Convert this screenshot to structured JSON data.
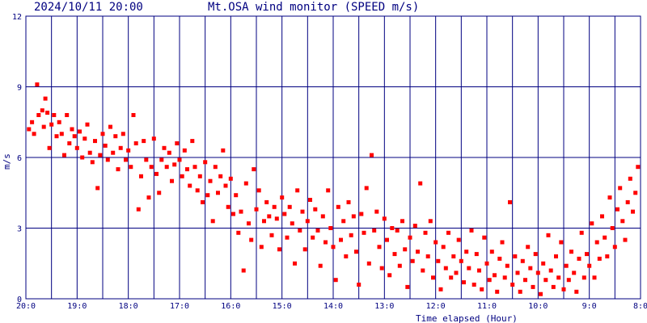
{
  "header": {
    "timestamp": "2024/10/11 20:00",
    "title": "Mt.OSA wind monitor (SPEED m/s)"
  },
  "colors": {
    "background": "#ffffff",
    "grid": "#000080",
    "text": "#000080",
    "points": "#ff0000"
  },
  "chart_data": {
    "type": "scatter",
    "title": "Mt.OSA wind monitor (SPEED m/s)",
    "xlabel": "Time elapsed (Hour)",
    "ylabel": "m/s",
    "x_tick_labels": [
      "20:0",
      "19:0",
      "18:0",
      "17:0",
      "16:0",
      "15:0",
      "14:0",
      "13:0",
      "12:0",
      "11:0",
      "10:0",
      "9:0",
      "8:0"
    ],
    "y_tick_labels": [
      "0",
      "3",
      "6",
      "9",
      "12"
    ],
    "y_ticks": [
      0,
      3,
      6,
      9,
      12
    ],
    "xlim_hours_elapsed": [
      0,
      12
    ],
    "ylim": [
      0,
      12
    ],
    "grid": true,
    "series": [
      {
        "points": [
          [
            0.06,
            7.2
          ],
          [
            0.12,
            7.5
          ],
          [
            0.16,
            7.0
          ],
          [
            0.22,
            9.1
          ],
          [
            0.25,
            7.8
          ],
          [
            0.32,
            8.0
          ],
          [
            0.35,
            7.3
          ],
          [
            0.38,
            8.5
          ],
          [
            0.42,
            7.9
          ],
          [
            0.46,
            6.4
          ],
          [
            0.5,
            7.4
          ],
          [
            0.55,
            7.8
          ],
          [
            0.6,
            6.9
          ],
          [
            0.65,
            7.5
          ],
          [
            0.7,
            7.0
          ],
          [
            0.75,
            6.1
          ],
          [
            0.8,
            7.8
          ],
          [
            0.85,
            6.6
          ],
          [
            0.9,
            7.2
          ],
          [
            0.95,
            6.9
          ],
          [
            1.0,
            6.4
          ],
          [
            1.05,
            7.1
          ],
          [
            1.1,
            6.0
          ],
          [
            1.15,
            6.8
          ],
          [
            1.2,
            7.4
          ],
          [
            1.25,
            6.2
          ],
          [
            1.3,
            5.8
          ],
          [
            1.35,
            6.7
          ],
          [
            1.4,
            4.7
          ],
          [
            1.45,
            6.1
          ],
          [
            1.5,
            7.0
          ],
          [
            1.55,
            6.5
          ],
          [
            1.6,
            5.9
          ],
          [
            1.65,
            7.3
          ],
          [
            1.7,
            6.2
          ],
          [
            1.75,
            6.9
          ],
          [
            1.8,
            5.5
          ],
          [
            1.85,
            6.4
          ],
          [
            1.9,
            7.0
          ],
          [
            1.95,
            5.9
          ],
          [
            2.0,
            6.3
          ],
          [
            2.05,
            5.6
          ],
          [
            2.1,
            7.8
          ],
          [
            2.15,
            6.6
          ],
          [
            2.2,
            3.8
          ],
          [
            2.25,
            5.2
          ],
          [
            2.3,
            6.7
          ],
          [
            2.35,
            5.9
          ],
          [
            2.4,
            4.3
          ],
          [
            2.45,
            5.6
          ],
          [
            2.5,
            6.8
          ],
          [
            2.55,
            5.3
          ],
          [
            2.6,
            4.5
          ],
          [
            2.65,
            5.9
          ],
          [
            2.7,
            6.4
          ],
          [
            2.75,
            5.6
          ],
          [
            2.8,
            6.2
          ],
          [
            2.85,
            5.0
          ],
          [
            2.9,
            5.7
          ],
          [
            2.95,
            6.6
          ],
          [
            3.0,
            5.9
          ],
          [
            3.05,
            5.2
          ],
          [
            3.1,
            6.3
          ],
          [
            3.15,
            5.5
          ],
          [
            3.2,
            4.8
          ],
          [
            3.25,
            6.7
          ],
          [
            3.3,
            5.6
          ],
          [
            3.35,
            4.6
          ],
          [
            3.4,
            5.2
          ],
          [
            3.45,
            4.1
          ],
          [
            3.5,
            5.8
          ],
          [
            3.55,
            4.4
          ],
          [
            3.6,
            5.0
          ],
          [
            3.65,
            3.3
          ],
          [
            3.7,
            5.6
          ],
          [
            3.75,
            4.5
          ],
          [
            3.8,
            5.2
          ],
          [
            3.85,
            6.3
          ],
          [
            3.9,
            4.8
          ],
          [
            3.95,
            3.9
          ],
          [
            4.0,
            5.1
          ],
          [
            4.05,
            3.6
          ],
          [
            4.1,
            4.4
          ],
          [
            4.15,
            2.8
          ],
          [
            4.2,
            3.7
          ],
          [
            4.25,
            1.2
          ],
          [
            4.3,
            4.9
          ],
          [
            4.35,
            3.2
          ],
          [
            4.4,
            2.5
          ],
          [
            4.45,
            5.5
          ],
          [
            4.5,
            3.8
          ],
          [
            4.55,
            4.6
          ],
          [
            4.6,
            2.2
          ],
          [
            4.65,
            3.3
          ],
          [
            4.7,
            4.1
          ],
          [
            4.75,
            3.5
          ],
          [
            4.8,
            2.7
          ],
          [
            4.85,
            3.9
          ],
          [
            4.9,
            3.4
          ],
          [
            4.95,
            2.1
          ],
          [
            5.0,
            4.3
          ],
          [
            5.05,
            3.6
          ],
          [
            5.1,
            2.6
          ],
          [
            5.15,
            3.9
          ],
          [
            5.2,
            3.2
          ],
          [
            5.25,
            1.5
          ],
          [
            5.3,
            4.6
          ],
          [
            5.35,
            2.9
          ],
          [
            5.4,
            3.7
          ],
          [
            5.45,
            2.1
          ],
          [
            5.5,
            3.3
          ],
          [
            5.55,
            4.2
          ],
          [
            5.6,
            2.6
          ],
          [
            5.65,
            3.8
          ],
          [
            5.7,
            2.9
          ],
          [
            5.75,
            1.4
          ],
          [
            5.8,
            3.5
          ],
          [
            5.85,
            2.4
          ],
          [
            5.9,
            4.6
          ],
          [
            5.95,
            3.0
          ],
          [
            6.0,
            2.2
          ],
          [
            6.05,
            0.8
          ],
          [
            6.1,
            3.9
          ],
          [
            6.15,
            2.5
          ],
          [
            6.2,
            3.3
          ],
          [
            6.25,
            1.8
          ],
          [
            6.3,
            4.1
          ],
          [
            6.35,
            2.7
          ],
          [
            6.4,
            3.5
          ],
          [
            6.45,
            2.0
          ],
          [
            6.5,
            0.6
          ],
          [
            6.55,
            3.6
          ],
          [
            6.6,
            2.8
          ],
          [
            6.65,
            4.7
          ],
          [
            6.7,
            1.5
          ],
          [
            6.75,
            6.1
          ],
          [
            6.8,
            2.9
          ],
          [
            6.85,
            3.7
          ],
          [
            6.9,
            2.2
          ],
          [
            6.95,
            1.3
          ],
          [
            7.0,
            3.4
          ],
          [
            7.05,
            2.5
          ],
          [
            7.1,
            1.0
          ],
          [
            7.15,
            3.0
          ],
          [
            7.2,
            1.9
          ],
          [
            7.25,
            2.9
          ],
          [
            7.3,
            1.4
          ],
          [
            7.35,
            3.3
          ],
          [
            7.4,
            2.1
          ],
          [
            7.45,
            0.5
          ],
          [
            7.5,
            2.6
          ],
          [
            7.55,
            1.6
          ],
          [
            7.6,
            3.1
          ],
          [
            7.65,
            2.0
          ],
          [
            7.7,
            4.9
          ],
          [
            7.75,
            1.2
          ],
          [
            7.8,
            2.8
          ],
          [
            7.85,
            1.8
          ],
          [
            7.9,
            3.3
          ],
          [
            7.95,
            0.9
          ],
          [
            8.0,
            2.4
          ],
          [
            8.05,
            1.6
          ],
          [
            8.1,
            0.4
          ],
          [
            8.15,
            2.2
          ],
          [
            8.2,
            1.3
          ],
          [
            8.25,
            2.8
          ],
          [
            8.3,
            0.9
          ],
          [
            8.35,
            1.8
          ],
          [
            8.4,
            1.1
          ],
          [
            8.45,
            2.5
          ],
          [
            8.5,
            1.6
          ],
          [
            8.55,
            0.7
          ],
          [
            8.6,
            2.0
          ],
          [
            8.65,
            1.3
          ],
          [
            8.7,
            2.9
          ],
          [
            8.75,
            0.6
          ],
          [
            8.8,
            1.9
          ],
          [
            8.85,
            1.2
          ],
          [
            8.9,
            0.4
          ],
          [
            8.95,
            2.6
          ],
          [
            9.0,
            1.5
          ],
          [
            9.05,
            0.8
          ],
          [
            9.1,
            2.0
          ],
          [
            9.15,
            1.0
          ],
          [
            9.2,
            0.3
          ],
          [
            9.25,
            1.7
          ],
          [
            9.3,
            2.4
          ],
          [
            9.35,
            0.9
          ],
          [
            9.4,
            1.4
          ],
          [
            9.45,
            4.1
          ],
          [
            9.5,
            0.6
          ],
          [
            9.55,
            1.8
          ],
          [
            9.6,
            1.1
          ],
          [
            9.65,
            0.3
          ],
          [
            9.7,
            1.6
          ],
          [
            9.75,
            0.8
          ],
          [
            9.8,
            2.2
          ],
          [
            9.85,
            1.3
          ],
          [
            9.9,
            0.5
          ],
          [
            9.95,
            1.9
          ],
          [
            10.0,
            1.1
          ],
          [
            10.05,
            0.2
          ],
          [
            10.1,
            1.5
          ],
          [
            10.15,
            0.8
          ],
          [
            10.2,
            2.7
          ],
          [
            10.25,
            1.2
          ],
          [
            10.3,
            0.5
          ],
          [
            10.35,
            1.8
          ],
          [
            10.4,
            0.9
          ],
          [
            10.45,
            2.4
          ],
          [
            10.5,
            0.4
          ],
          [
            10.55,
            1.4
          ],
          [
            10.6,
            0.8
          ],
          [
            10.65,
            2.0
          ],
          [
            10.7,
            1.1
          ],
          [
            10.75,
            0.3
          ],
          [
            10.8,
            1.7
          ],
          [
            10.85,
            2.8
          ],
          [
            10.9,
            0.9
          ],
          [
            10.95,
            1.9
          ],
          [
            11.0,
            1.4
          ],
          [
            11.05,
            3.2
          ],
          [
            11.1,
            0.9
          ],
          [
            11.15,
            2.4
          ],
          [
            11.2,
            1.7
          ],
          [
            11.25,
            3.5
          ],
          [
            11.3,
            2.6
          ],
          [
            11.35,
            1.8
          ],
          [
            11.4,
            4.3
          ],
          [
            11.45,
            3.0
          ],
          [
            11.5,
            2.2
          ],
          [
            11.55,
            3.8
          ],
          [
            11.6,
            4.7
          ],
          [
            11.65,
            3.3
          ],
          [
            11.7,
            2.5
          ],
          [
            11.75,
            4.1
          ],
          [
            11.8,
            5.1
          ],
          [
            11.85,
            3.7
          ],
          [
            11.9,
            4.5
          ],
          [
            11.95,
            5.6
          ]
        ]
      }
    ]
  }
}
